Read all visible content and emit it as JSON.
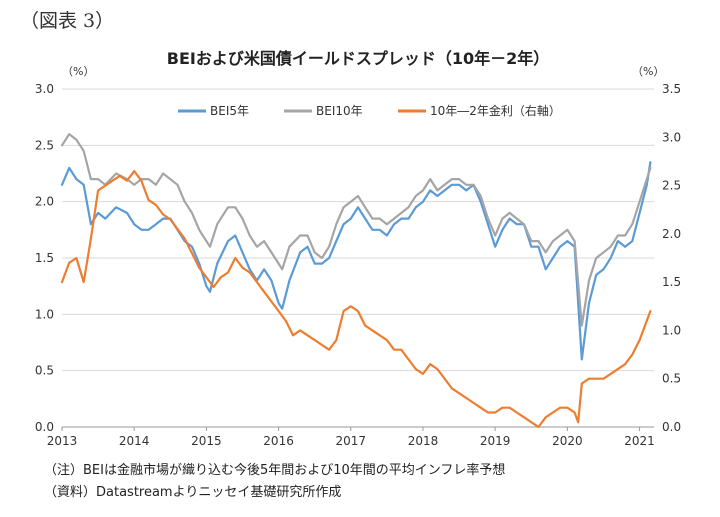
{
  "figure_label": "（図表 3）",
  "chart_data": {
    "type": "line",
    "title": "BEIおよび米国債イールドスプレッド（10年－2年）",
    "y_left": {
      "unit": "（%）",
      "ylim": [
        0.0,
        3.0
      ],
      "ticks": [
        "0.0",
        "0.5",
        "1.0",
        "1.5",
        "2.0",
        "2.5",
        "3.0"
      ]
    },
    "y_right": {
      "unit": "（%）",
      "ylim": [
        0.0,
        3.5
      ],
      "ticks": [
        "0.0",
        "0.5",
        "1.0",
        "1.5",
        "2.0",
        "2.5",
        "3.0",
        "3.5"
      ]
    },
    "x_ticks": [
      "2013",
      "2014",
      "2015",
      "2016",
      "2017",
      "2018",
      "2019",
      "2020",
      "2021"
    ],
    "x_range": [
      2013.0,
      2021.2
    ],
    "grid": "horizontal",
    "legend_placement": "top-center",
    "series": [
      {
        "name": "BEI5年",
        "axis": "left",
        "color": "#5b9bd5",
        "x": [
          2013.0,
          2013.1,
          2013.2,
          2013.3,
          2013.4,
          2013.5,
          2013.6,
          2013.75,
          2013.9,
          2014.0,
          2014.1,
          2014.2,
          2014.3,
          2014.4,
          2014.5,
          2014.6,
          2014.7,
          2014.8,
          2014.9,
          2015.0,
          2015.05,
          2015.15,
          2015.3,
          2015.4,
          2015.5,
          2015.6,
          2015.7,
          2015.8,
          2015.9,
          2016.0,
          2016.05,
          2016.15,
          2016.3,
          2016.4,
          2016.5,
          2016.6,
          2016.7,
          2016.8,
          2016.9,
          2017.0,
          2017.1,
          2017.2,
          2017.3,
          2017.4,
          2017.5,
          2017.6,
          2017.7,
          2017.8,
          2017.9,
          2018.0,
          2018.1,
          2018.2,
          2018.3,
          2018.4,
          2018.5,
          2018.6,
          2018.7,
          2018.8,
          2018.9,
          2019.0,
          2019.1,
          2019.2,
          2019.3,
          2019.4,
          2019.5,
          2019.6,
          2019.7,
          2019.8,
          2019.9,
          2020.0,
          2020.1,
          2020.2,
          2020.25,
          2020.3,
          2020.4,
          2020.5,
          2020.6,
          2020.7,
          2020.8,
          2020.9,
          2021.0,
          2021.1,
          2021.15
        ],
        "values": [
          2.15,
          2.3,
          2.2,
          2.15,
          1.8,
          1.9,
          1.85,
          1.95,
          1.9,
          1.8,
          1.75,
          1.75,
          1.8,
          1.85,
          1.85,
          1.75,
          1.65,
          1.6,
          1.45,
          1.25,
          1.2,
          1.45,
          1.65,
          1.7,
          1.55,
          1.4,
          1.3,
          1.4,
          1.3,
          1.1,
          1.05,
          1.3,
          1.55,
          1.6,
          1.45,
          1.45,
          1.5,
          1.65,
          1.8,
          1.85,
          1.95,
          1.85,
          1.75,
          1.75,
          1.7,
          1.8,
          1.85,
          1.85,
          1.95,
          2.0,
          2.1,
          2.05,
          2.1,
          2.15,
          2.15,
          2.1,
          2.15,
          2.0,
          1.8,
          1.6,
          1.75,
          1.85,
          1.8,
          1.8,
          1.6,
          1.6,
          1.4,
          1.5,
          1.6,
          1.65,
          1.6,
          0.6,
          0.85,
          1.1,
          1.35,
          1.4,
          1.5,
          1.65,
          1.6,
          1.65,
          1.9,
          2.15,
          2.35
        ]
      },
      {
        "name": "BEI10年",
        "axis": "left",
        "color": "#a5a5a5",
        "x": [
          2013.0,
          2013.1,
          2013.2,
          2013.3,
          2013.4,
          2013.5,
          2013.6,
          2013.75,
          2013.9,
          2014.0,
          2014.1,
          2014.2,
          2014.3,
          2014.4,
          2014.5,
          2014.6,
          2014.7,
          2014.8,
          2014.9,
          2015.0,
          2015.05,
          2015.15,
          2015.3,
          2015.4,
          2015.5,
          2015.6,
          2015.7,
          2015.8,
          2015.9,
          2016.0,
          2016.05,
          2016.15,
          2016.3,
          2016.4,
          2016.5,
          2016.6,
          2016.7,
          2016.8,
          2016.9,
          2017.0,
          2017.1,
          2017.2,
          2017.3,
          2017.4,
          2017.5,
          2017.6,
          2017.7,
          2017.8,
          2017.9,
          2018.0,
          2018.1,
          2018.2,
          2018.3,
          2018.4,
          2018.5,
          2018.6,
          2018.7,
          2018.8,
          2018.9,
          2019.0,
          2019.1,
          2019.2,
          2019.3,
          2019.4,
          2019.5,
          2019.6,
          2019.7,
          2019.8,
          2019.9,
          2020.0,
          2020.1,
          2020.2,
          2020.25,
          2020.3,
          2020.4,
          2020.5,
          2020.6,
          2020.7,
          2020.8,
          2020.9,
          2021.0,
          2021.1,
          2021.15
        ],
        "values": [
          2.5,
          2.6,
          2.55,
          2.45,
          2.2,
          2.2,
          2.15,
          2.25,
          2.2,
          2.15,
          2.2,
          2.2,
          2.15,
          2.25,
          2.2,
          2.15,
          2.0,
          1.9,
          1.75,
          1.65,
          1.6,
          1.8,
          1.95,
          1.95,
          1.85,
          1.7,
          1.6,
          1.65,
          1.55,
          1.45,
          1.4,
          1.6,
          1.7,
          1.7,
          1.55,
          1.5,
          1.6,
          1.8,
          1.95,
          2.0,
          2.05,
          1.95,
          1.85,
          1.85,
          1.8,
          1.85,
          1.9,
          1.95,
          2.05,
          2.1,
          2.2,
          2.1,
          2.15,
          2.2,
          2.2,
          2.15,
          2.15,
          2.05,
          1.85,
          1.7,
          1.85,
          1.9,
          1.85,
          1.8,
          1.65,
          1.65,
          1.55,
          1.65,
          1.7,
          1.75,
          1.65,
          0.9,
          1.1,
          1.3,
          1.5,
          1.55,
          1.6,
          1.7,
          1.7,
          1.8,
          2.0,
          2.2,
          2.3
        ]
      },
      {
        "name": "10年―2年金利（右軸）",
        "axis": "right",
        "color": "#ed7d31",
        "x": [
          2013.0,
          2013.1,
          2013.2,
          2013.3,
          2013.4,
          2013.5,
          2013.6,
          2013.7,
          2013.8,
          2013.9,
          2014.0,
          2014.1,
          2014.2,
          2014.3,
          2014.4,
          2014.5,
          2014.6,
          2014.7,
          2014.8,
          2014.9,
          2015.0,
          2015.1,
          2015.2,
          2015.3,
          2015.4,
          2015.5,
          2015.6,
          2015.7,
          2015.8,
          2015.9,
          2016.0,
          2016.1,
          2016.2,
          2016.3,
          2016.4,
          2016.5,
          2016.6,
          2016.7,
          2016.8,
          2016.9,
          2017.0,
          2017.1,
          2017.2,
          2017.3,
          2017.4,
          2017.5,
          2017.6,
          2017.7,
          2017.8,
          2017.9,
          2018.0,
          2018.1,
          2018.2,
          2018.3,
          2018.4,
          2018.5,
          2018.6,
          2018.7,
          2018.8,
          2018.9,
          2019.0,
          2019.1,
          2019.2,
          2019.3,
          2019.4,
          2019.5,
          2019.6,
          2019.7,
          2019.8,
          2019.9,
          2020.0,
          2020.1,
          2020.15,
          2020.2,
          2020.3,
          2020.4,
          2020.5,
          2020.6,
          2020.7,
          2020.8,
          2020.9,
          2021.0,
          2021.1,
          2021.15
        ],
        "values": [
          1.5,
          1.7,
          1.75,
          1.5,
          1.95,
          2.45,
          2.5,
          2.55,
          2.6,
          2.55,
          2.65,
          2.55,
          2.35,
          2.3,
          2.2,
          2.15,
          2.05,
          1.95,
          1.8,
          1.65,
          1.55,
          1.45,
          1.55,
          1.6,
          1.75,
          1.65,
          1.6,
          1.5,
          1.4,
          1.3,
          1.2,
          1.1,
          0.95,
          1.0,
          0.95,
          0.9,
          0.85,
          0.8,
          0.9,
          1.2,
          1.25,
          1.2,
          1.05,
          1.0,
          0.95,
          0.9,
          0.8,
          0.8,
          0.7,
          0.6,
          0.55,
          0.65,
          0.6,
          0.5,
          0.4,
          0.35,
          0.3,
          0.25,
          0.2,
          0.15,
          0.15,
          0.2,
          0.2,
          0.15,
          0.1,
          0.05,
          0.0,
          0.1,
          0.15,
          0.2,
          0.2,
          0.15,
          0.05,
          0.45,
          0.5,
          0.5,
          0.5,
          0.55,
          0.6,
          0.65,
          0.75,
          0.9,
          1.1,
          1.2
        ]
      }
    ]
  },
  "notes": [
    "（注）BEIは金融市場が織り込む今後5年間および10年間の平均インフレ率予想",
    "（資料）Datastreamよりニッセイ基礎研究所作成"
  ]
}
